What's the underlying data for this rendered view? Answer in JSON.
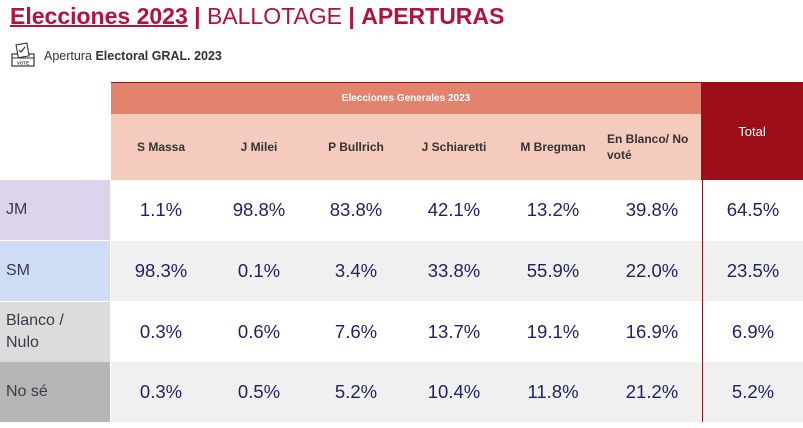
{
  "header": {
    "title_main": "Elecciones 2023",
    "separator": "|",
    "title_mid": "BALLOTAGE",
    "title_end": "APERTURAS"
  },
  "subtitle": {
    "prefix": "Apertura",
    "bold": "Electoral GRAL. 2023",
    "icon_label": "VOTE"
  },
  "table": {
    "group_header": "Elecciones Generales 2023",
    "columns": [
      "S Massa",
      "J Milei",
      "P Bullrich",
      "J Schiaretti",
      "M Bregman",
      "En Blanco/ No voté"
    ],
    "total_header": "Total",
    "rows": [
      {
        "label": "JM",
        "values": [
          "1.1%",
          "98.8%",
          "83.8%",
          "42.1%",
          "13.2%",
          "39.8%"
        ],
        "total": "64.5%"
      },
      {
        "label": "SM",
        "values": [
          "98.3%",
          "0.1%",
          "3.4%",
          "33.8%",
          "55.9%",
          "22.0%"
        ],
        "total": "23.5%"
      },
      {
        "label": "Blanco / Nulo",
        "values": [
          "0.3%",
          "0.6%",
          "7.6%",
          "13.7%",
          "19.1%",
          "16.9%"
        ],
        "total": "6.9%"
      },
      {
        "label": "No sé",
        "values": [
          "0.3%",
          "0.5%",
          "5.2%",
          "10.4%",
          "11.8%",
          "21.2%"
        ],
        "total": "5.2%"
      }
    ]
  },
  "colors": {
    "title": "#b5123a",
    "group_header_bg": "#e2836e",
    "col_header_bg": "#f5cbbd",
    "total_header_bg": "#9e0e18",
    "row_label_bg": [
      "#ddd4ec",
      "#cfdcf6",
      "#dcdcdc",
      "#b6b6b6"
    ],
    "row_bg": [
      "#ffffff",
      "#f0f0f0",
      "#ffffff",
      "#f0f0f0"
    ]
  }
}
